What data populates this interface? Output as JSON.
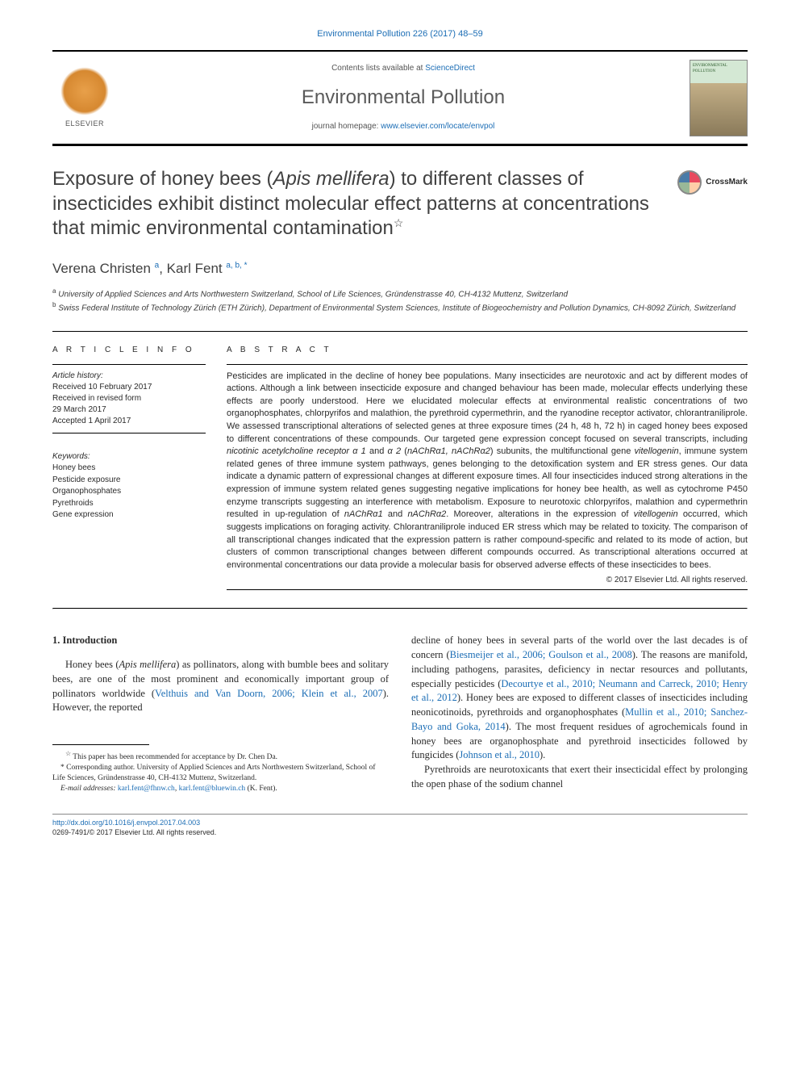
{
  "journal_reference": "Environmental Pollution 226 (2017) 48–59",
  "header": {
    "contents_prefix": "Contents lists available at ",
    "contents_link": "ScienceDirect",
    "journal_name": "Environmental Pollution",
    "homepage_prefix": "journal homepage: ",
    "homepage_link": "www.elsevier.com/locate/envpol",
    "elsevier_label": "ELSEVIER",
    "cover_label": "ENVIRONMENTAL POLLUTION"
  },
  "crossmark_label": "CrossMark",
  "title_parts": {
    "pre": "Exposure of honey bees (",
    "italic": "Apis mellifera",
    "post": ") to different classes of insecticides exhibit distinct molecular effect patterns at concentrations that mimic environmental contamination",
    "star": "☆"
  },
  "authors": {
    "a1_name": "Verena Christen",
    "a1_sup": "a",
    "a2_name": "Karl Fent",
    "a2_sup": "a, b, *"
  },
  "affiliations": {
    "a_sup": "a",
    "a_text": " University of Applied Sciences and Arts Northwestern Switzerland, School of Life Sciences, Gründenstrasse 40, CH-4132 Muttenz, Switzerland",
    "b_sup": "b",
    "b_text": " Swiss Federal Institute of Technology Zürich (ETH Zürich), Department of Environmental System Sciences, Institute of Biogeochemistry and Pollution Dynamics, CH-8092 Zürich, Switzerland"
  },
  "article_info": {
    "heading": "A R T I C L E  I N F O",
    "history_label": "Article history:",
    "received": "Received 10 February 2017",
    "revised1": "Received in revised form",
    "revised2": "29 March 2017",
    "accepted": "Accepted 1 April 2017",
    "keywords_label": "Keywords:",
    "keywords": [
      "Honey bees",
      "Pesticide exposure",
      "Organophosphates",
      "Pyrethroids",
      "Gene expression"
    ]
  },
  "abstract": {
    "heading": "A B S T R A C T",
    "text_parts": [
      {
        "t": "Pesticides are implicated in the decline of honey bee populations. Many insecticides are neurotoxic and act by different modes of actions. Although a link between insecticide exposure and changed behaviour has been made, molecular effects underlying these effects are poorly understood. Here we elucidated molecular effects at environmental realistic concentrations of two organophosphates, chlorpyrifos and malathion, the pyrethroid cypermethrin, and the ryanodine receptor activator, chlorantraniliprole. We assessed transcriptional alterations of selected genes at three exposure times (24 h, 48 h, 72 h) in caged honey bees exposed to different concentrations of these compounds. Our targeted gene expression concept focused on several transcripts, including "
      },
      {
        "t": "nicotinic acetylcholine receptor α 1",
        "i": true
      },
      {
        "t": " and "
      },
      {
        "t": "α 2",
        "i": true
      },
      {
        "t": " ("
      },
      {
        "t": "nAChRα1, nAChRα2",
        "i": true
      },
      {
        "t": ") subunits, the multifunctional gene "
      },
      {
        "t": "vitellogenin",
        "i": true
      },
      {
        "t": ", immune system related genes of three immune system pathways, genes belonging to the detoxification system and ER stress genes. Our data indicate a dynamic pattern of expressional changes at different exposure times. All four insecticides induced strong alterations in the expression of immune system related genes suggesting negative implications for honey bee health, as well as cytochrome P450 enzyme transcripts suggesting an interference with metabolism. Exposure to neurotoxic chlorpyrifos, malathion and cypermethrin resulted in up-regulation of "
      },
      {
        "t": "nAChRα1",
        "i": true
      },
      {
        "t": " and "
      },
      {
        "t": "nAChRα2",
        "i": true
      },
      {
        "t": ". Moreover, alterations in the expression of "
      },
      {
        "t": "vitellogenin",
        "i": true
      },
      {
        "t": " occurred, which suggests implications on foraging activity. Chlorantraniliprole induced ER stress which may be related to toxicity. The comparison of all transcriptional changes indicated that the expression pattern is rather compound-specific and related to its mode of action, but clusters of common transcriptional changes between different compounds occurred. As transcriptional alterations occurred at environmental concentrations our data provide a molecular basis for observed adverse effects of these insecticides to bees."
      }
    ],
    "copyright": "© 2017 Elsevier Ltd. All rights reserved."
  },
  "body": {
    "heading": "1. Introduction",
    "left_p1_parts": [
      {
        "t": "Honey bees ("
      },
      {
        "t": "Apis mellifera",
        "i": true
      },
      {
        "t": ") as pollinators, along with bumble bees and solitary bees, are one of the most prominent and economically important group of pollinators worldwide ("
      },
      {
        "t": "Velthuis and Van Doorn, 2006; Klein et al., 2007",
        "a": true
      },
      {
        "t": "). However, the reported"
      }
    ],
    "right_p1_parts": [
      {
        "t": "decline of honey bees in several parts of the world over the last decades is of concern ("
      },
      {
        "t": "Biesmeijer et al., 2006; Goulson et al., 2008",
        "a": true
      },
      {
        "t": "). The reasons are manifold, including pathogens, parasites, deficiency in nectar resources and pollutants, especially pesticides ("
      },
      {
        "t": "Decourtye et al., 2010; Neumann and Carreck, 2010; Henry et al., 2012",
        "a": true
      },
      {
        "t": "). Honey bees are exposed to different classes of insecticides including neonicotinoids, pyrethroids and organophosphates ("
      },
      {
        "t": "Mullin et al., 2010; Sanchez-Bayo and Goka, 2014",
        "a": true
      },
      {
        "t": "). The most frequent residues of agrochemicals found in honey bees are organophosphate and pyrethroid insecticides followed by fungicides ("
      },
      {
        "t": "Johnson et al., 2010",
        "a": true
      },
      {
        "t": ")."
      }
    ],
    "right_p2": "Pyrethroids are neurotoxicants that exert their insecticidal effect by prolonging the open phase of the sodium channel"
  },
  "footnotes": {
    "star": "☆",
    "star_text": " This paper has been recommended for acceptance by Dr. Chen Da.",
    "corr": "*",
    "corr_text": " Corresponding author. University of Applied Sciences and Arts Northwestern Switzerland, School of Life Sciences, Gründenstrasse 40, CH-4132 Muttenz, Switzerland.",
    "email_label": "E-mail addresses: ",
    "email1": "karl.fent@fhnw.ch",
    "email_sep": ", ",
    "email2": "karl.fent@bluewin.ch",
    "email_attr": " (K. Fent)."
  },
  "footer": {
    "doi": "http://dx.doi.org/10.1016/j.envpol.2017.04.003",
    "issn": "0269-7491/© 2017 Elsevier Ltd. All rights reserved."
  },
  "colors": {
    "link": "#1b6db5",
    "text": "#2a2a2a",
    "heading": "#414141",
    "border": "#000000"
  }
}
